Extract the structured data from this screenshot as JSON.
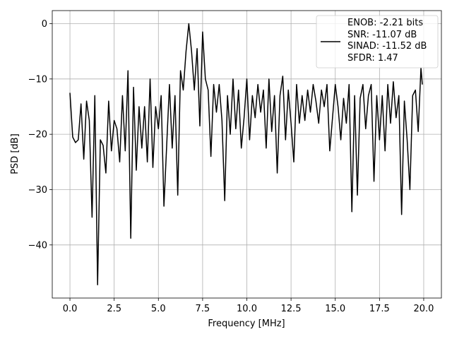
{
  "chart_data": {
    "type": "line",
    "xlabel": "Frequency [MHz]",
    "ylabel": "PSD [dB]",
    "x": [
      0.0,
      0.156,
      0.313,
      0.469,
      0.625,
      0.781,
      0.938,
      1.094,
      1.25,
      1.406,
      1.563,
      1.719,
      1.875,
      2.031,
      2.188,
      2.344,
      2.5,
      2.656,
      2.813,
      2.969,
      3.125,
      3.281,
      3.438,
      3.594,
      3.75,
      3.906,
      4.063,
      4.219,
      4.375,
      4.531,
      4.688,
      4.844,
      5.0,
      5.156,
      5.313,
      5.469,
      5.625,
      5.781,
      5.938,
      6.094,
      6.25,
      6.406,
      6.563,
      6.719,
      6.875,
      7.031,
      7.188,
      7.344,
      7.5,
      7.656,
      7.813,
      7.969,
      8.125,
      8.281,
      8.438,
      8.594,
      8.75,
      8.906,
      9.063,
      9.219,
      9.375,
      9.531,
      9.688,
      9.844,
      10.0,
      10.156,
      10.313,
      10.469,
      10.625,
      10.781,
      10.938,
      11.094,
      11.25,
      11.406,
      11.563,
      11.719,
      11.875,
      12.031,
      12.188,
      12.344,
      12.5,
      12.656,
      12.813,
      12.969,
      13.125,
      13.281,
      13.438,
      13.594,
      13.75,
      13.906,
      14.063,
      14.219,
      14.375,
      14.531,
      14.688,
      14.844,
      15.0,
      15.156,
      15.313,
      15.469,
      15.625,
      15.781,
      15.938,
      16.094,
      16.25,
      16.406,
      16.563,
      16.719,
      16.875,
      17.031,
      17.188,
      17.344,
      17.5,
      17.656,
      17.813,
      17.969,
      18.125,
      18.281,
      18.438,
      18.594,
      18.75,
      18.906,
      19.063,
      19.219,
      19.375,
      19.531,
      19.688,
      19.844,
      19.92
    ],
    "series": [
      {
        "name": "ENOB: -2.21 bits\nSNR: -11.07 dB\nSINAD: -11.52 dB\nSFDR: 1.47",
        "color": "#000000",
        "values": [
          -12.5,
          -20.5,
          -21.5,
          -21,
          -14.5,
          -24.5,
          -14,
          -17.5,
          -35,
          -13,
          -47.2,
          -21,
          -22,
          -27,
          -14,
          -23,
          -17.5,
          -19,
          -25,
          -13,
          -23,
          -8.5,
          -38.8,
          -11.5,
          -26.5,
          -15,
          -22.5,
          -15,
          -25,
          -10,
          -26,
          -15,
          -19,
          -13,
          -33,
          -22,
          -11,
          -22.5,
          -13,
          -31,
          -8.5,
          -12,
          -5,
          0,
          -5,
          -12,
          -4.5,
          -18.5,
          -1.5,
          -10,
          -12,
          -24,
          -11,
          -16,
          -11,
          -17.5,
          -32,
          -13,
          -20,
          -10,
          -19,
          -12,
          -22.5,
          -17,
          -10,
          -21,
          -13,
          -17,
          -11,
          -16,
          -12,
          -22.5,
          -10,
          -19.5,
          -13,
          -27,
          -13,
          -9.5,
          -21,
          -12,
          -18,
          -25,
          -11,
          -18,
          -13,
          -17.5,
          -12,
          -16,
          -11,
          -14,
          -18,
          -12,
          -15,
          -11,
          -23,
          -17,
          -11,
          -15,
          -21,
          -13.5,
          -18,
          -11,
          -34,
          -13,
          -31,
          -13.5,
          -11,
          -19,
          -13,
          -11,
          -28.5,
          -13,
          -21,
          -13,
          -23,
          -11,
          -18,
          -10.5,
          -17,
          -13,
          -34.5,
          -14,
          -21,
          -30,
          -13,
          -12,
          -19.5,
          -8,
          -11
        ]
      }
    ],
    "xlim": [
      -1,
      21
    ],
    "ylim": [
      -49.6,
      2.36
    ],
    "xticks": [
      {
        "value": 0,
        "label": "0.0"
      },
      2.5,
      {
        "value": 5,
        "label": "5.0"
      },
      7.5,
      {
        "value": 10,
        "label": "10.0"
      },
      12.5,
      {
        "value": 15,
        "label": "15.0"
      },
      17.5,
      {
        "value": 20,
        "label": "20.0"
      }
    ],
    "yticks": [
      {
        "value": -40,
        "label": "−40"
      },
      {
        "value": -30,
        "label": "−30"
      },
      {
        "value": -20,
        "label": "−20"
      },
      {
        "value": -10,
        "label": "−10"
      },
      0
    ],
    "grid": true,
    "legend": "upper right"
  }
}
